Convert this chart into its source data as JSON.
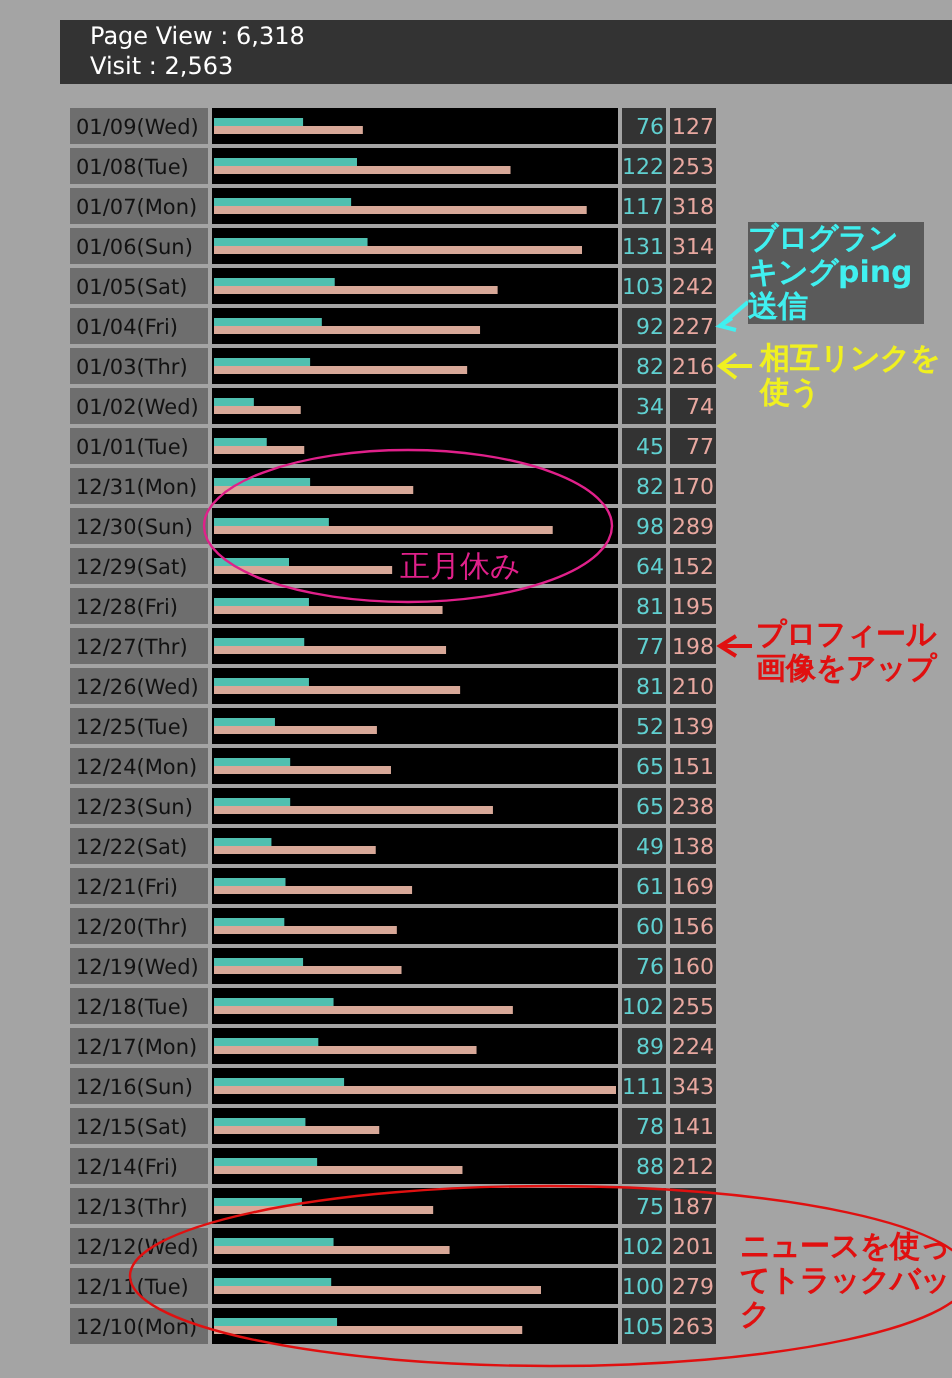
{
  "chart_data": {
    "type": "bar",
    "orientation": "horizontal",
    "title": "Page View : 6,318",
    "subtitle": "Visit : 2,563",
    "categories": [
      "01/09(Wed)",
      "01/08(Tue)",
      "01/07(Mon)",
      "01/06(Sun)",
      "01/05(Sat)",
      "01/04(Fri)",
      "01/03(Thr)",
      "01/02(Wed)",
      "01/01(Tue)",
      "12/31(Mon)",
      "12/30(Sun)",
      "12/29(Sat)",
      "12/28(Fri)",
      "12/27(Thr)",
      "12/26(Wed)",
      "12/25(Tue)",
      "12/24(Mon)",
      "12/23(Sun)",
      "12/22(Sat)",
      "12/21(Fri)",
      "12/20(Thr)",
      "12/19(Wed)",
      "12/18(Tue)",
      "12/17(Mon)",
      "12/16(Sun)",
      "12/15(Sat)",
      "12/14(Fri)",
      "12/13(Thr)",
      "12/12(Wed)",
      "12/11(Tue)",
      "12/10(Mon)"
    ],
    "series": [
      {
        "color": "#d8a898",
        "values": [
          127,
          253,
          318,
          314,
          242,
          227,
          216,
          74,
          77,
          170,
          289,
          152,
          195,
          198,
          210,
          139,
          151,
          238,
          138,
          169,
          156,
          160,
          255,
          224,
          343,
          141,
          212,
          187,
          201,
          279,
          263
        ]
      },
      {
        "color": "#4fc0b0",
        "values": [
          76,
          122,
          117,
          131,
          103,
          92,
          82,
          34,
          45,
          82,
          98,
          64,
          81,
          77,
          81,
          52,
          65,
          65,
          49,
          61,
          60,
          76,
          102,
          89,
          111,
          78,
          88,
          75,
          102,
          100,
          105
        ]
      }
    ],
    "xlim": [
      0,
      343
    ],
    "data_labels": true,
    "legend": false,
    "annotations": [
      "ブログランキングping送信",
      "相互リンクを使う",
      "プロフィール画像をアップ",
      "正月休み",
      "ニュースを使ってトラックバック"
    ]
  }
}
